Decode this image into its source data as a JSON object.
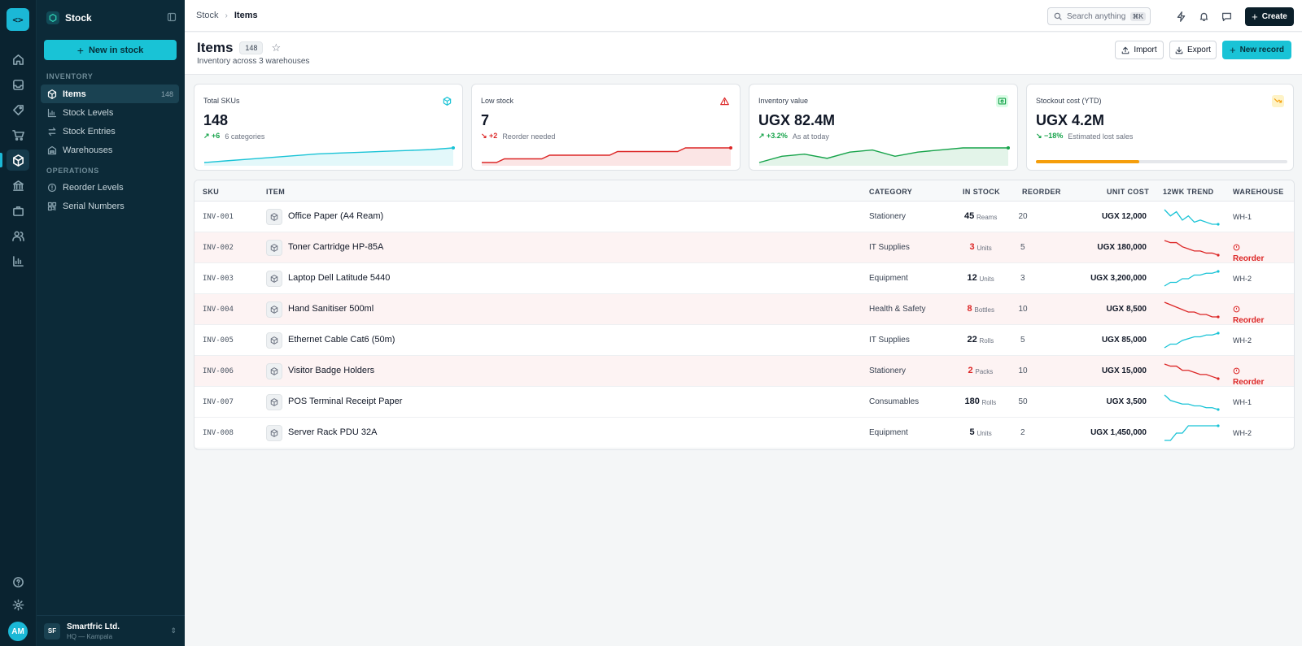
{
  "colors": {
    "accent": "#19c3d6",
    "danger": "#dc2626",
    "success": "#16a34a",
    "warning": "#f59e0b",
    "rail_bg": "#0a2330",
    "sidebar_bg": "#0c2a38"
  },
  "rail": {
    "logo": "<>",
    "icons": [
      "home-icon",
      "inbox-icon",
      "tag-icon",
      "cart-icon",
      "box-icon",
      "bank-icon",
      "briefcase-icon",
      "users-icon",
      "chart-icon"
    ],
    "active": "box-icon",
    "bottom_icons": [
      "help-icon",
      "settings-icon"
    ],
    "avatar": "AM"
  },
  "sidebar": {
    "module_title": "Stock",
    "new_button": "New in  stock",
    "sections": [
      {
        "title": "INVENTORY",
        "items": [
          {
            "label": "Items",
            "count": "148",
            "icon": "box-icon",
            "active": true
          },
          {
            "label": "Stock Levels",
            "icon": "bar-chart-icon"
          },
          {
            "label": "Stock Entries",
            "icon": "swap-icon"
          },
          {
            "label": "Warehouses",
            "icon": "warehouse-icon"
          }
        ]
      },
      {
        "title": "OPERATIONS",
        "items": [
          {
            "label": "Reorder Levels",
            "icon": "alert-circle-icon"
          },
          {
            "label": "Serial Numbers",
            "icon": "qr-icon"
          }
        ]
      }
    ],
    "org": {
      "initials": "SF",
      "name": "Smartfric Ltd.",
      "sub": "HQ — Kampala"
    }
  },
  "topbar": {
    "breadcrumb": [
      "Stock",
      "Items"
    ],
    "search_placeholder": "Search anything",
    "search_kbd": "⌘K",
    "create_label": "Create"
  },
  "page": {
    "title": "Items",
    "count": "148",
    "subtitle": "Inventory across 3 warehouses",
    "import_label": "Import",
    "export_label": "Export",
    "new_record_label": "New record"
  },
  "kpis": [
    {
      "label": "Total SKUs",
      "value": "148",
      "delta": "+6",
      "note": "6 categories",
      "trend": "up",
      "tone": "accent",
      "series": [
        1,
        2,
        3,
        4,
        5,
        6,
        6.5,
        7,
        7.5,
        8,
        8.5,
        9.5
      ]
    },
    {
      "label": "Low stock",
      "value": "7",
      "delta": "+2",
      "note": "Reorder needed",
      "trend": "down",
      "tone": "danger",
      "series": [
        1,
        3,
        3,
        5,
        5,
        5,
        7,
        7,
        7,
        9,
        9,
        9
      ]
    },
    {
      "label": "Inventory value",
      "value": "UGX 82.4M",
      "delta": "+3.2%",
      "note": "As at today",
      "trend": "up",
      "tone": "success",
      "series": [
        2,
        5,
        6,
        4,
        7,
        8,
        5,
        7,
        8,
        9,
        9,
        9
      ]
    },
    {
      "label": "Stockout cost (YTD)",
      "value": "UGX 4.2M",
      "delta": "−18%",
      "note": "Estimated lost sales",
      "trend": "down",
      "tone": "warning",
      "progress": 0.41
    }
  ],
  "table": {
    "columns": [
      "SKU",
      "ITEM",
      "CATEGORY",
      "IN STOCK",
      "REORDER",
      "UNIT COST",
      "12WK TREND",
      "WAREHOUSE"
    ],
    "rows": [
      {
        "sku": "INV-001",
        "item": "Office Paper (A4 Ream)",
        "category": "Stationery",
        "qty": "45",
        "unit": "Reams",
        "reorder": "20",
        "cost": "UGX 12,000",
        "warehouse": "WH-1",
        "low": false,
        "trend": [
          8,
          5,
          7,
          3,
          5,
          2,
          3,
          2,
          1,
          1
        ]
      },
      {
        "sku": "INV-002",
        "item": "Toner Cartridge HP-85A",
        "category": "IT Supplies",
        "qty": "3",
        "unit": "Units",
        "reorder": "5",
        "cost": "UGX 180,000",
        "warehouse": "Reorder",
        "low": true,
        "trend": [
          9,
          8,
          8,
          6,
          5,
          4,
          4,
          3,
          3,
          2
        ]
      },
      {
        "sku": "INV-003",
        "item": "Laptop Dell Latitude 5440",
        "category": "Equipment",
        "qty": "12",
        "unit": "Units",
        "reorder": "3",
        "cost": "UGX 3,200,000",
        "warehouse": "WH-2",
        "low": false,
        "trend": [
          1,
          3,
          3,
          5,
          5,
          7,
          7,
          8,
          8,
          9
        ]
      },
      {
        "sku": "INV-004",
        "item": "Hand Sanitiser 500ml",
        "category": "Health & Safety",
        "qty": "8",
        "unit": "Bottles",
        "reorder": "10",
        "cost": "UGX 8,500",
        "warehouse": "Reorder",
        "low": true,
        "trend": [
          9,
          8,
          7,
          6,
          5,
          5,
          4,
          4,
          3,
          3
        ]
      },
      {
        "sku": "INV-005",
        "item": "Ethernet Cable Cat6 (50m)",
        "category": "IT Supplies",
        "qty": "22",
        "unit": "Rolls",
        "reorder": "5",
        "cost": "UGX 85,000",
        "warehouse": "WH-2",
        "low": false,
        "trend": [
          1,
          3,
          3,
          5,
          6,
          7,
          7,
          8,
          8,
          9
        ]
      },
      {
        "sku": "INV-006",
        "item": "Visitor Badge Holders",
        "category": "Stationery",
        "qty": "2",
        "unit": "Packs",
        "reorder": "10",
        "cost": "UGX 15,000",
        "warehouse": "Reorder",
        "low": true,
        "trend": [
          9,
          8,
          8,
          6,
          6,
          5,
          4,
          4,
          3,
          2
        ]
      },
      {
        "sku": "INV-007",
        "item": "POS Terminal Receipt Paper",
        "category": "Consumables",
        "qty": "180",
        "unit": "Rolls",
        "reorder": "50",
        "cost": "UGX 3,500",
        "warehouse": "WH-1",
        "low": false,
        "trend": [
          9,
          6,
          5,
          4,
          4,
          3,
          3,
          2,
          2,
          1
        ]
      },
      {
        "sku": "INV-008",
        "item": "Server Rack PDU 32A",
        "category": "Equipment",
        "qty": "5",
        "unit": "Units",
        "reorder": "2",
        "cost": "UGX 1,450,000",
        "warehouse": "WH-2",
        "low": false,
        "trend": [
          1,
          1,
          5,
          5,
          9,
          9,
          9,
          9,
          9,
          9
        ]
      }
    ]
  }
}
